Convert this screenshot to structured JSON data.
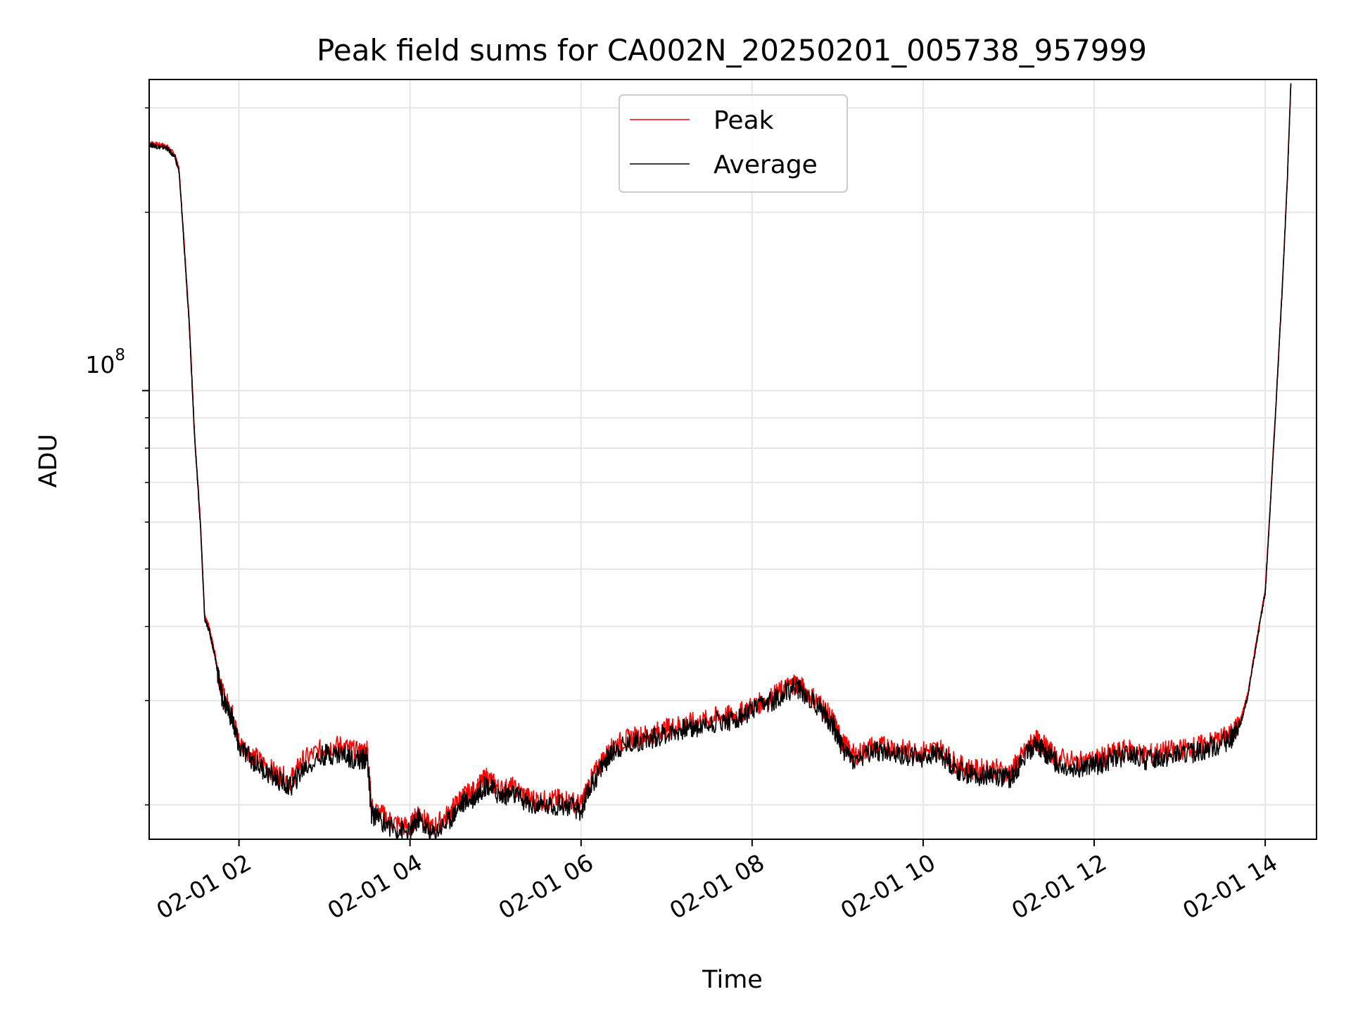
{
  "chart_data": {
    "type": "line",
    "title": "Peak field sums for CA002N_20250201_005738_957999",
    "xlabel": "Time",
    "ylabel": "ADU",
    "x_tick_labels": [
      "02-01 02",
      "02-01 04",
      "02-01 06",
      "02-01 08",
      "02-01 10",
      "02-01 12",
      "02-01 14"
    ],
    "y_tick_label": {
      "base": "10",
      "exponent": "8"
    },
    "x_unit": "hours since 2025-02-01 00:00",
    "xlim": [
      0.95,
      14.6
    ],
    "ylim": [
      17500000,
      335000000
    ],
    "y_scale": "log",
    "grid": true,
    "legend_position": "upper center",
    "series": [
      {
        "name": "Peak",
        "color": "#ff0000",
        "points": [
          [
            0.96,
            262000000
          ],
          [
            1.05,
            260000000
          ],
          [
            1.15,
            259000000
          ],
          [
            1.25,
            250000000
          ],
          [
            1.3,
            236000000
          ],
          [
            1.35,
            186000000
          ],
          [
            1.42,
            130000000
          ],
          [
            1.48,
            85000000
          ],
          [
            1.55,
            60000000
          ],
          [
            1.6,
            41500000
          ],
          [
            1.65,
            40000000
          ],
          [
            1.72,
            36000000
          ],
          [
            1.8,
            31000000
          ],
          [
            1.92,
            28500000
          ],
          [
            2.0,
            25500000
          ],
          [
            2.2,
            24000000
          ],
          [
            2.4,
            22800000
          ],
          [
            2.6,
            22000000
          ],
          [
            2.75,
            23800000
          ],
          [
            3.0,
            25000000
          ],
          [
            3.2,
            25200000
          ],
          [
            3.4,
            24500000
          ],
          [
            3.5,
            24800000
          ],
          [
            3.55,
            19800000
          ],
          [
            3.8,
            18700000
          ],
          [
            4.0,
            18300000
          ],
          [
            4.1,
            19500000
          ],
          [
            4.25,
            18200000
          ],
          [
            4.45,
            19300000
          ],
          [
            4.6,
            20600000
          ],
          [
            4.75,
            21100000
          ],
          [
            4.9,
            22300000
          ],
          [
            5.05,
            21200000
          ],
          [
            5.2,
            21400000
          ],
          [
            5.4,
            20500000
          ],
          [
            5.6,
            20300000
          ],
          [
            5.8,
            20500000
          ],
          [
            6.0,
            20000000
          ],
          [
            6.1,
            21800000
          ],
          [
            6.25,
            23800000
          ],
          [
            6.4,
            25300000
          ],
          [
            6.6,
            26000000
          ],
          [
            6.8,
            26300000
          ],
          [
            7.0,
            26900000
          ],
          [
            7.2,
            27400000
          ],
          [
            7.4,
            27600000
          ],
          [
            7.6,
            28200000
          ],
          [
            7.8,
            28300000
          ],
          [
            8.0,
            29300000
          ],
          [
            8.2,
            30200000
          ],
          [
            8.35,
            31200000
          ],
          [
            8.5,
            32200000
          ],
          [
            8.6,
            31400000
          ],
          [
            8.8,
            29600000
          ],
          [
            8.95,
            27700000
          ],
          [
            9.05,
            25500000
          ],
          [
            9.2,
            24200000
          ],
          [
            9.4,
            25100000
          ],
          [
            9.6,
            25100000
          ],
          [
            9.8,
            24700000
          ],
          [
            10.0,
            24600000
          ],
          [
            10.2,
            24900000
          ],
          [
            10.4,
            23400000
          ],
          [
            10.6,
            22900000
          ],
          [
            10.8,
            23100000
          ],
          [
            11.0,
            22600000
          ],
          [
            11.15,
            24100000
          ],
          [
            11.3,
            25800000
          ],
          [
            11.4,
            25300000
          ],
          [
            11.55,
            24100000
          ],
          [
            11.8,
            23600000
          ],
          [
            12.0,
            23800000
          ],
          [
            12.2,
            24400000
          ],
          [
            12.4,
            24800000
          ],
          [
            12.6,
            24300000
          ],
          [
            12.8,
            24600000
          ],
          [
            13.0,
            24800000
          ],
          [
            13.2,
            25100000
          ],
          [
            13.4,
            25600000
          ],
          [
            13.6,
            26300000
          ],
          [
            13.7,
            27400000
          ],
          [
            13.8,
            31000000
          ],
          [
            13.9,
            38000000
          ],
          [
            14.0,
            46000000
          ],
          [
            14.05,
            61000000
          ],
          [
            14.12,
            92000000
          ],
          [
            14.2,
            150000000
          ],
          [
            14.26,
            230000000
          ],
          [
            14.3,
            330000000
          ]
        ]
      },
      {
        "name": "Average",
        "color": "#000000",
        "points": [
          [
            0.96,
            260000000
          ],
          [
            1.05,
            258000000
          ],
          [
            1.15,
            257000000
          ],
          [
            1.25,
            248000000
          ],
          [
            1.3,
            234000000
          ],
          [
            1.35,
            184000000
          ],
          [
            1.42,
            128000000
          ],
          [
            1.48,
            84000000
          ],
          [
            1.55,
            59000000
          ],
          [
            1.6,
            41000000
          ],
          [
            1.65,
            39500000
          ],
          [
            1.72,
            35500000
          ],
          [
            1.8,
            30500000
          ],
          [
            1.92,
            28000000
          ],
          [
            2.0,
            25000000
          ],
          [
            2.2,
            23500000
          ],
          [
            2.4,
            22300000
          ],
          [
            2.6,
            21400000
          ],
          [
            2.75,
            23000000
          ],
          [
            3.0,
            24300000
          ],
          [
            3.2,
            24400000
          ],
          [
            3.4,
            23800000
          ],
          [
            3.5,
            24000000
          ],
          [
            3.55,
            19300000
          ],
          [
            3.8,
            18300000
          ],
          [
            4.0,
            17900000
          ],
          [
            4.1,
            19000000
          ],
          [
            4.25,
            17800000
          ],
          [
            4.45,
            18800000
          ],
          [
            4.6,
            20100000
          ],
          [
            4.75,
            20600000
          ],
          [
            4.9,
            21700000
          ],
          [
            5.05,
            20700000
          ],
          [
            5.2,
            20900000
          ],
          [
            5.4,
            20000000
          ],
          [
            5.6,
            19900000
          ],
          [
            5.8,
            20000000
          ],
          [
            6.0,
            19500000
          ],
          [
            6.1,
            21300000
          ],
          [
            6.25,
            23300000
          ],
          [
            6.4,
            24900000
          ],
          [
            6.6,
            25500000
          ],
          [
            6.8,
            25800000
          ],
          [
            7.0,
            26400000
          ],
          [
            7.2,
            26900000
          ],
          [
            7.4,
            27100000
          ],
          [
            7.6,
            27700000
          ],
          [
            7.8,
            27800000
          ],
          [
            8.0,
            28800000
          ],
          [
            8.2,
            29700000
          ],
          [
            8.35,
            30700000
          ],
          [
            8.5,
            31700000
          ],
          [
            8.6,
            30900000
          ],
          [
            8.8,
            29100000
          ],
          [
            8.95,
            27200000
          ],
          [
            9.05,
            25000000
          ],
          [
            9.2,
            23700000
          ],
          [
            9.4,
            24600000
          ],
          [
            9.6,
            24600000
          ],
          [
            9.8,
            24200000
          ],
          [
            10.0,
            24100000
          ],
          [
            10.2,
            24400000
          ],
          [
            10.4,
            22900000
          ],
          [
            10.6,
            22400000
          ],
          [
            10.8,
            22600000
          ],
          [
            11.0,
            22100000
          ],
          [
            11.15,
            23600000
          ],
          [
            11.3,
            25300000
          ],
          [
            11.4,
            24800000
          ],
          [
            11.55,
            23600000
          ],
          [
            11.8,
            23100000
          ],
          [
            12.0,
            23300000
          ],
          [
            12.2,
            23900000
          ],
          [
            12.4,
            24300000
          ],
          [
            12.6,
            23800000
          ],
          [
            12.8,
            24100000
          ],
          [
            13.0,
            24300000
          ],
          [
            13.2,
            24600000
          ],
          [
            13.4,
            25100000
          ],
          [
            13.6,
            25800000
          ],
          [
            13.7,
            27000000
          ],
          [
            13.8,
            30600000
          ],
          [
            13.9,
            37600000
          ],
          [
            14.0,
            45500000
          ],
          [
            14.05,
            60500000
          ],
          [
            14.12,
            91000000
          ],
          [
            14.2,
            149000000
          ],
          [
            14.26,
            229000000
          ],
          [
            14.3,
            330000000
          ]
        ]
      }
    ]
  }
}
